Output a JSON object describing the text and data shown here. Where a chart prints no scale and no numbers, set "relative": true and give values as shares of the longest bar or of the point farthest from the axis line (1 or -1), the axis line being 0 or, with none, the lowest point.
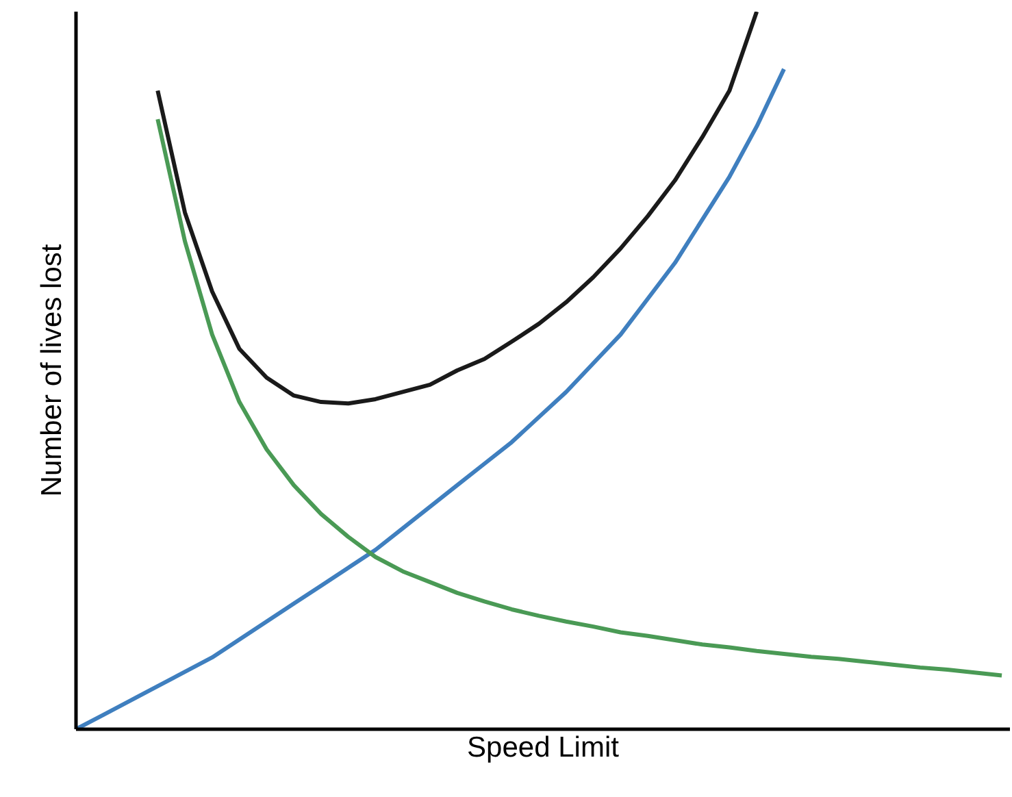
{
  "chart_data": {
    "type": "line",
    "relative": true,
    "xlabel": "Speed Limit",
    "ylabel": "Number of lives lost",
    "marker": "none",
    "line_style": "solid",
    "categories": [
      null,
      null,
      null,
      null,
      null,
      null,
      null,
      null,
      null,
      null,
      null,
      null,
      null,
      null,
      null,
      null,
      null,
      null,
      null,
      null,
      null,
      null,
      null,
      null,
      null,
      null,
      null,
      null,
      null,
      null,
      null,
      null,
      null,
      null,
      null
    ],
    "series": [
      {
        "color": "#1a1a1a",
        "values": [
          null,
          null,
          null,
          0.89,
          0.72,
          0.61,
          0.53,
          0.49,
          0.465,
          0.456,
          0.454,
          0.46,
          0.47,
          0.48,
          0.5,
          0.516,
          0.54,
          0.565,
          0.595,
          0.63,
          0.67,
          0.715,
          0.765,
          0.825,
          0.89,
          1,
          null,
          null,
          null,
          null,
          null,
          null,
          null,
          null,
          null
        ]
      },
      {
        "color": "#3f7fbf",
        "values": [
          0,
          0.02,
          0.04,
          0.06,
          0.08,
          0.1,
          0.125,
          0.15,
          0.175,
          0.2,
          0.225,
          0.25,
          0.28,
          0.31,
          0.34,
          0.37,
          0.4,
          0.435,
          0.47,
          0.51,
          0.55,
          0.6,
          0.65,
          0.71,
          0.77,
          0.84,
          0.92,
          null,
          null,
          null,
          null,
          null,
          null,
          null,
          null
        ]
      },
      {
        "color": "#4a9a55",
        "values": [
          null,
          null,
          null,
          0.85,
          0.68,
          0.55,
          0.456,
          0.39,
          0.34,
          0.3,
          0.268,
          0.24,
          0.22,
          0.205,
          0.19,
          0.178,
          0.167,
          0.158,
          0.15,
          0.143,
          0.135,
          0.13,
          0.124,
          0.118,
          0.114,
          0.109,
          0.105,
          0.101,
          0.098,
          0.094,
          0.09,
          0.086,
          0.083,
          0.079,
          0.075
        ]
      }
    ]
  }
}
